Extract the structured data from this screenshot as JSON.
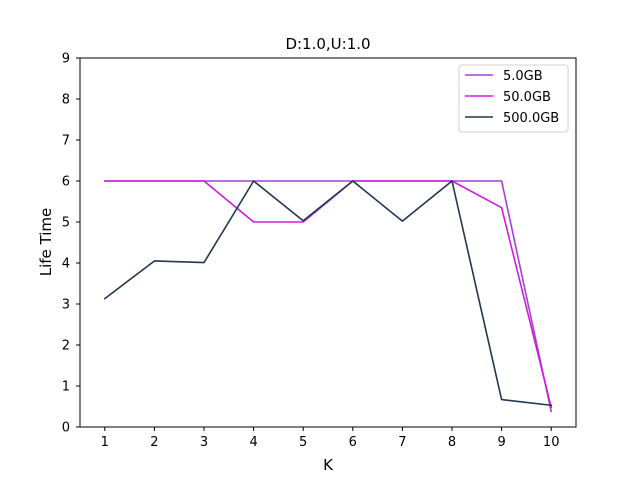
{
  "chart_data": {
    "type": "line",
    "title": "D:1.0,U:1.0",
    "xlabel": "K",
    "ylabel": "Life Time",
    "x": [
      1,
      2,
      3,
      4,
      5,
      6,
      7,
      8,
      9,
      10
    ],
    "xlim": [
      0.5,
      10.5
    ],
    "ylim": [
      0,
      9
    ],
    "xticks": [
      "1",
      "2",
      "3",
      "4",
      "5",
      "6",
      "7",
      "8",
      "9",
      "10"
    ],
    "yticks": [
      "0",
      "1",
      "2",
      "3",
      "4",
      "5",
      "6",
      "7",
      "8",
      "9"
    ],
    "grid": false,
    "legend_position": "top-right",
    "series": [
      {
        "name": "5.0GB",
        "color": "#a83fd6",
        "values": [
          6.0,
          6.0,
          6.0,
          6.0,
          6.0,
          6.0,
          6.0,
          6.0,
          6.0,
          0.38
        ]
      },
      {
        "name": "50.0GB",
        "color": "#d11be0",
        "values": [
          6.0,
          6.0,
          6.0,
          5.0,
          5.0,
          6.0,
          6.0,
          6.0,
          5.35,
          0.48
        ]
      },
      {
        "name": "500.0GB",
        "color": "#233653",
        "values": [
          3.13,
          4.05,
          4.01,
          6.0,
          5.03,
          6.0,
          5.02,
          6.0,
          0.67,
          0.53
        ]
      }
    ]
  }
}
